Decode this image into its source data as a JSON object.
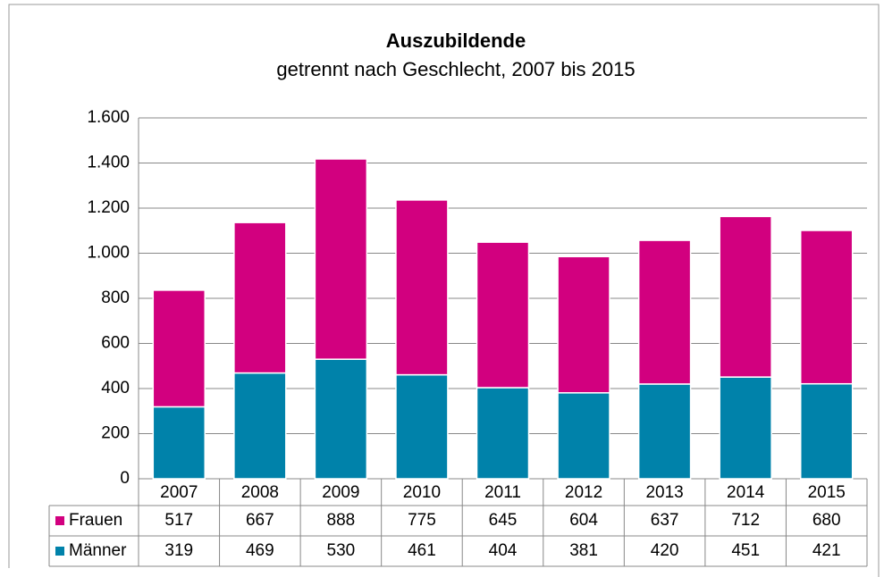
{
  "chart_data": {
    "type": "stacked_bar",
    "title": "Auszubildende",
    "subtitle": "getrennt nach Geschlecht, 2007 bis 2015",
    "categories": [
      "2007",
      "2008",
      "2009",
      "2010",
      "2011",
      "2012",
      "2013",
      "2014",
      "2015"
    ],
    "series": [
      {
        "name": "Frauen",
        "color": "#d2007f",
        "values": [
          517,
          667,
          888,
          775,
          645,
          604,
          637,
          712,
          680
        ]
      },
      {
        "name": "Männer",
        "color": "#0082aa",
        "values": [
          319,
          469,
          530,
          461,
          404,
          381,
          420,
          451,
          421
        ]
      }
    ],
    "ylim": [
      0,
      1600
    ],
    "yticks": [
      0,
      200,
      400,
      600,
      800,
      {
        "value": 1000,
        "label": "1.000"
      },
      {
        "value": 1200,
        "label": "1.200"
      },
      {
        "value": 1400,
        "label": "1.400"
      },
      {
        "value": 1600,
        "label": "1.600"
      }
    ],
    "grid": true
  }
}
